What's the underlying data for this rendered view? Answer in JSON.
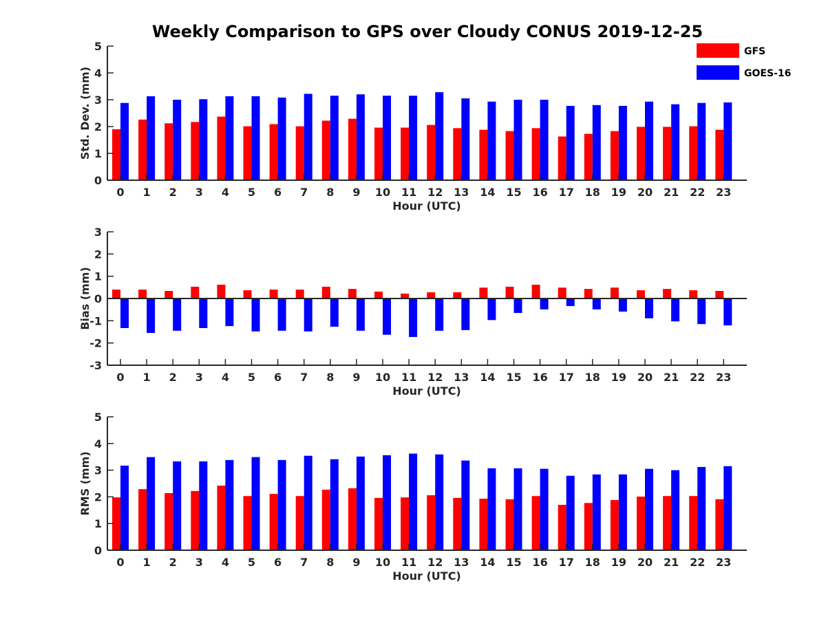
{
  "title": "Weekly Comparison to GPS over Cloudy CONUS 2019-12-25",
  "legend": {
    "placement": "top-right",
    "entries": [
      {
        "name": "GFS",
        "color": "#ff0000"
      },
      {
        "name": "GOES-16",
        "color": "#0000ff"
      }
    ]
  },
  "chart_data": [
    {
      "type": "bar",
      "xlabel": "Hour (UTC)",
      "ylabel": "Std. Dev. (mm)",
      "ylim": [
        0,
        5
      ],
      "yticks": [
        "0",
        "1",
        "2",
        "3",
        "4",
        "5"
      ],
      "categories": [
        "0",
        "1",
        "2",
        "3",
        "4",
        "5",
        "6",
        "7",
        "8",
        "9",
        "10",
        "11",
        "12",
        "13",
        "14",
        "15",
        "16",
        "17",
        "18",
        "19",
        "20",
        "21",
        "22",
        "23"
      ],
      "grid": false,
      "series": [
        {
          "name": "GFS",
          "color": "#ff0000",
          "values": [
            1.9,
            2.26,
            2.12,
            2.17,
            2.37,
            2.01,
            2.09,
            2.01,
            2.22,
            2.29,
            1.96,
            1.96,
            2.06,
            1.94,
            1.88,
            1.83,
            1.94,
            1.63,
            1.73,
            1.83,
            1.99,
            1.99,
            2.01,
            1.88
          ]
        },
        {
          "name": "GOES-16",
          "color": "#0000ff",
          "values": [
            2.88,
            3.13,
            3.0,
            3.02,
            3.13,
            3.13,
            3.08,
            3.22,
            3.15,
            3.2,
            3.15,
            3.15,
            3.28,
            3.05,
            2.93,
            3.0,
            3.0,
            2.77,
            2.8,
            2.77,
            2.93,
            2.83,
            2.88,
            2.9
          ]
        }
      ]
    },
    {
      "type": "bar",
      "xlabel": "Hour (UTC)",
      "ylabel": "Bias (mm)",
      "ylim": [
        -3,
        3
      ],
      "yticks": [
        "-3",
        "-2",
        "-1",
        "0",
        "1",
        "2",
        "3"
      ],
      "categories": [
        "0",
        "1",
        "2",
        "3",
        "4",
        "5",
        "6",
        "7",
        "8",
        "9",
        "10",
        "11",
        "12",
        "13",
        "14",
        "15",
        "16",
        "17",
        "18",
        "19",
        "20",
        "21",
        "22",
        "23"
      ],
      "grid": false,
      "series": [
        {
          "name": "GFS",
          "color": "#ff0000",
          "values": [
            0.4,
            0.4,
            0.34,
            0.53,
            0.62,
            0.37,
            0.4,
            0.4,
            0.53,
            0.43,
            0.31,
            0.22,
            0.28,
            0.28,
            0.49,
            0.53,
            0.62,
            0.49,
            0.43,
            0.49,
            0.37,
            0.43,
            0.37,
            0.34
          ]
        },
        {
          "name": "GOES-16",
          "color": "#0000ff",
          "values": [
            -1.33,
            -1.55,
            -1.45,
            -1.33,
            -1.24,
            -1.48,
            -1.45,
            -1.48,
            -1.27,
            -1.45,
            -1.63,
            -1.73,
            -1.45,
            -1.42,
            -0.97,
            -0.65,
            -0.49,
            -0.34,
            -0.49,
            -0.59,
            -0.89,
            -1.03,
            -1.15,
            -1.21
          ]
        }
      ]
    },
    {
      "type": "bar",
      "xlabel": "Hour (UTC)",
      "ylabel": "RMS (mm)",
      "ylim": [
        0,
        5
      ],
      "yticks": [
        "0",
        "1",
        "2",
        "3",
        "4",
        "5"
      ],
      "categories": [
        "0",
        "1",
        "2",
        "3",
        "4",
        "5",
        "6",
        "7",
        "8",
        "9",
        "10",
        "11",
        "12",
        "13",
        "14",
        "15",
        "16",
        "17",
        "18",
        "19",
        "20",
        "21",
        "22",
        "23"
      ],
      "grid": false,
      "series": [
        {
          "name": "GFS",
          "color": "#ff0000",
          "values": [
            1.98,
            2.29,
            2.14,
            2.22,
            2.42,
            2.03,
            2.11,
            2.03,
            2.27,
            2.32,
            1.96,
            1.98,
            2.06,
            1.96,
            1.93,
            1.91,
            2.03,
            1.7,
            1.77,
            1.88,
            2.01,
            2.03,
            2.03,
            1.91
          ]
        },
        {
          "name": "GOES-16",
          "color": "#0000ff",
          "values": [
            3.17,
            3.49,
            3.33,
            3.33,
            3.38,
            3.49,
            3.38,
            3.54,
            3.41,
            3.51,
            3.56,
            3.62,
            3.59,
            3.36,
            3.07,
            3.07,
            3.05,
            2.79,
            2.84,
            2.84,
            3.05,
            3.0,
            3.12,
            3.15
          ]
        }
      ]
    }
  ]
}
